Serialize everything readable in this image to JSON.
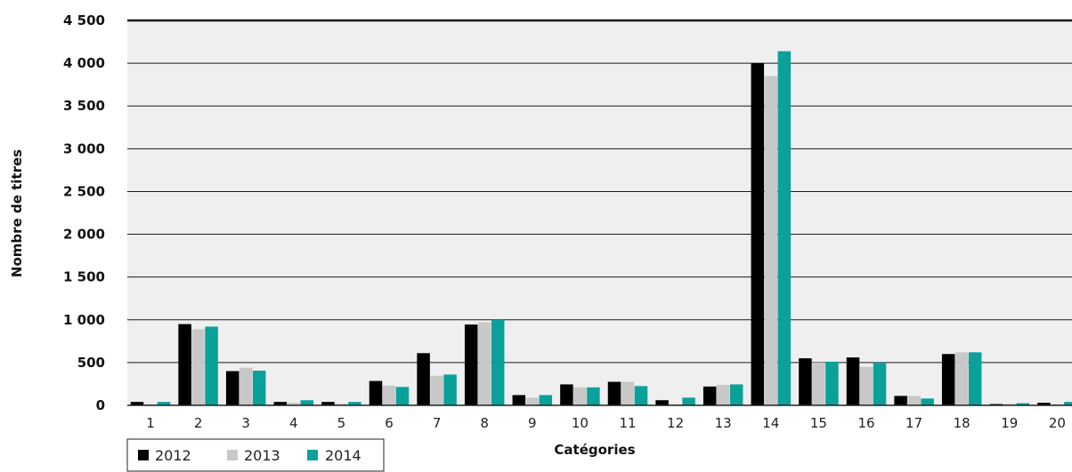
{
  "chart_data": {
    "type": "bar",
    "xlabel": "Catégories",
    "ylabel": "Nombre de titres",
    "ylim": [
      0,
      4500
    ],
    "yticks": [
      0,
      500,
      1000,
      1500,
      2000,
      2500,
      3000,
      3500,
      4000,
      4500
    ],
    "ytick_labels": [
      "0",
      "500",
      "1 000",
      "1 500",
      "2 000",
      "2 500",
      "3 000",
      "3 500",
      "4 000",
      "4 500"
    ],
    "categories": [
      "1",
      "2",
      "3",
      "4",
      "5",
      "6",
      "7",
      "8",
      "9",
      "10",
      "11",
      "12",
      "13",
      "14",
      "15",
      "16",
      "17",
      "18",
      "19",
      "20"
    ],
    "grid": true,
    "legend_position": "bottom-left",
    "series": [
      {
        "name": "2012",
        "color": "#000000",
        "values": [
          40,
          950,
          400,
          40,
          40,
          285,
          610,
          945,
          120,
          245,
          275,
          60,
          220,
          4000,
          550,
          560,
          110,
          600,
          15,
          30
        ]
      },
      {
        "name": "2013",
        "color": "#c8c8c8",
        "values": [
          15,
          890,
          440,
          30,
          20,
          230,
          345,
          970,
          90,
          210,
          275,
          15,
          240,
          3850,
          500,
          450,
          110,
          620,
          20,
          15
        ]
      },
      {
        "name": "2014",
        "color": "#0aa19b",
        "values": [
          40,
          920,
          405,
          60,
          40,
          215,
          360,
          1000,
          120,
          210,
          225,
          90,
          245,
          4140,
          510,
          500,
          80,
          620,
          25,
          40
        ]
      }
    ]
  }
}
